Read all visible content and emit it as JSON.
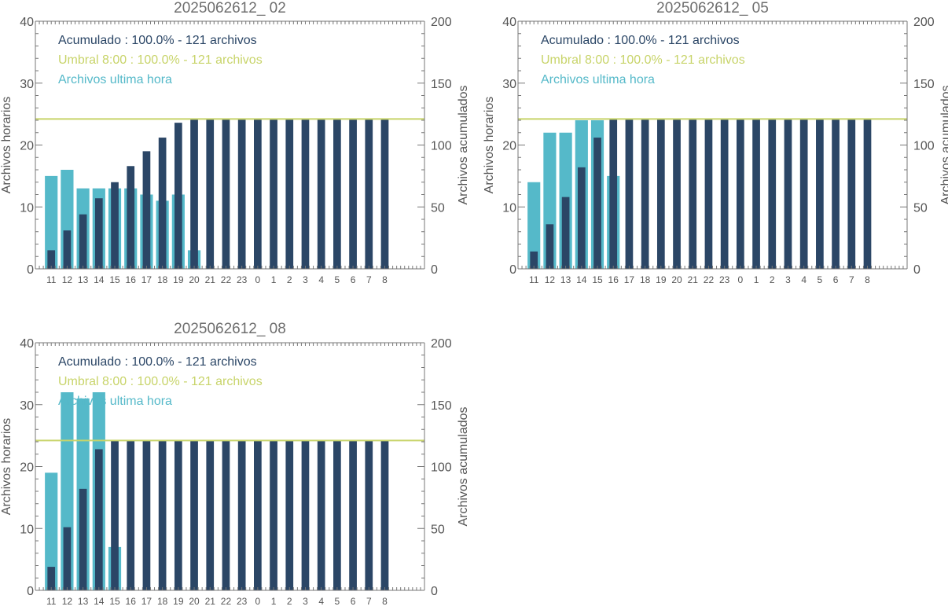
{
  "colors": {
    "hourly": "#55b9c9",
    "cumulative": "#2b4666",
    "threshold": "#c8d46a",
    "axis": "#777777",
    "text": "#555555",
    "title": "#6e6e6e"
  },
  "chart_data": [
    {
      "type": "bar",
      "title": "2025062612_ 02",
      "ylabel_left": "Archivos horarios",
      "ylabel_right": "Archivos acumulados",
      "ylim_left": [
        0,
        40
      ],
      "ylim_right": [
        0,
        200
      ],
      "yticks_left": [
        "0",
        "10",
        "20",
        "30",
        "40"
      ],
      "yticks_right": [
        "0",
        "50",
        "100",
        "150",
        "200"
      ],
      "categories": [
        "11",
        "12",
        "13",
        "14",
        "15",
        "16",
        "17",
        "18",
        "19",
        "20",
        "21",
        "22",
        "23",
        "0",
        "1",
        "2",
        "3",
        "4",
        "5",
        "6",
        "7",
        "8"
      ],
      "legend": [
        "Acumulado : 100.0% - 121 archivos",
        "Umbral 8:00 : 100.0% - 121 archivos",
        "Archivos ultima hora"
      ],
      "threshold": 121,
      "series": [
        {
          "name": "Archivos ultima hora",
          "axis": "left",
          "values": [
            15,
            16,
            13,
            13,
            13,
            13,
            12,
            11,
            12,
            3,
            null,
            null,
            null,
            null,
            null,
            null,
            null,
            null,
            null,
            null,
            null,
            null
          ]
        },
        {
          "name": "Acumulado",
          "axis": "right",
          "values": [
            15,
            31,
            44,
            57,
            70,
            83,
            95,
            106,
            118,
            121,
            121,
            121,
            121,
            121,
            121,
            121,
            121,
            121,
            121,
            121,
            121,
            121
          ]
        }
      ]
    },
    {
      "type": "bar",
      "title": "2025062612_ 05",
      "ylabel_left": "Archivos horarios",
      "ylabel_right": "Archivos acumulados",
      "ylim_left": [
        0,
        40
      ],
      "ylim_right": [
        0,
        200
      ],
      "yticks_left": [
        "0",
        "10",
        "20",
        "30",
        "40"
      ],
      "yticks_right": [
        "0",
        "50",
        "100",
        "150",
        "200"
      ],
      "categories": [
        "11",
        "12",
        "13",
        "14",
        "15",
        "16",
        "17",
        "18",
        "19",
        "20",
        "21",
        "22",
        "23",
        "0",
        "1",
        "2",
        "3",
        "4",
        "5",
        "6",
        "7",
        "8"
      ],
      "legend": [
        "Acumulado : 100.0% - 121 archivos",
        "Umbral 8:00 : 100.0% - 121 archivos",
        "Archivos ultima hora"
      ],
      "threshold": 121,
      "series": [
        {
          "name": "Archivos ultima hora",
          "axis": "left",
          "values": [
            14,
            22,
            22,
            24,
            24,
            15,
            null,
            null,
            null,
            null,
            null,
            null,
            null,
            null,
            null,
            null,
            null,
            null,
            null,
            null,
            null,
            null
          ]
        },
        {
          "name": "Acumulado",
          "axis": "right",
          "values": [
            14,
            36,
            58,
            82,
            106,
            121,
            121,
            121,
            121,
            121,
            121,
            121,
            121,
            121,
            121,
            121,
            121,
            121,
            121,
            121,
            121,
            121
          ]
        }
      ]
    },
    {
      "type": "bar",
      "title": "2025062612_ 08",
      "ylabel_left": "Archivos horarios",
      "ylabel_right": "Archivos acumulados",
      "ylim_left": [
        0,
        40
      ],
      "ylim_right": [
        0,
        200
      ],
      "yticks_left": [
        "0",
        "10",
        "20",
        "30",
        "40"
      ],
      "yticks_right": [
        "0",
        "50",
        "100",
        "150",
        "200"
      ],
      "categories": [
        "11",
        "12",
        "13",
        "14",
        "15",
        "16",
        "17",
        "18",
        "19",
        "20",
        "21",
        "22",
        "23",
        "0",
        "1",
        "2",
        "3",
        "4",
        "5",
        "6",
        "7",
        "8"
      ],
      "legend": [
        "Acumulado : 100.0% - 121 archivos",
        "Umbral 8:00 : 100.0% - 121 archivos",
        "Archivos ultima hora"
      ],
      "threshold": 121,
      "series": [
        {
          "name": "Archivos ultima hora",
          "axis": "left",
          "values": [
            19,
            32,
            31,
            32,
            7,
            null,
            null,
            null,
            null,
            null,
            null,
            null,
            null,
            null,
            null,
            null,
            null,
            null,
            null,
            null,
            null,
            null
          ]
        },
        {
          "name": "Acumulado",
          "axis": "right",
          "values": [
            19,
            51,
            82,
            114,
            121,
            121,
            121,
            121,
            121,
            121,
            121,
            121,
            121,
            121,
            121,
            121,
            121,
            121,
            121,
            121,
            121,
            121
          ]
        }
      ]
    }
  ]
}
